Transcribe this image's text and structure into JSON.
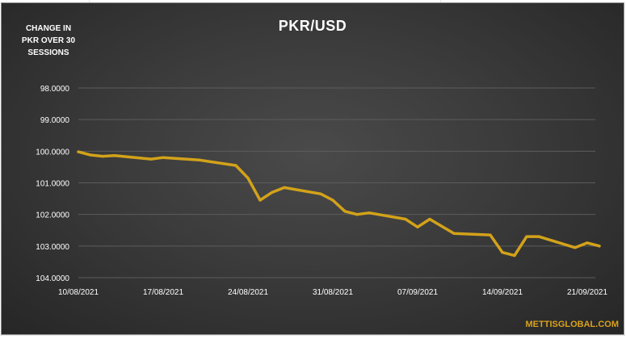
{
  "chart_data": {
    "type": "line",
    "title": "PKR/USD",
    "side_note_lines": [
      "CHANGE IN",
      "PKR OVER 30",
      "SESSIONS"
    ],
    "watermark": "METTISGLOBAL.COM",
    "xlabel": "",
    "ylabel": "",
    "ylim": [
      98,
      104
    ],
    "y_inverted": true,
    "y_ticks": [
      "98.0000",
      "99.0000",
      "100.0000",
      "101.0000",
      "102.0000",
      "103.0000",
      "104.0000"
    ],
    "x_tick_labels": [
      "10/08/2021",
      "17/08/2021",
      "24/08/2021",
      "31/08/2021",
      "07/09/2021",
      "14/09/2021",
      "21/09/2021"
    ],
    "grid": "horizontal",
    "series": [
      {
        "color": "#d3a21a",
        "points": [
          {
            "x": "10/08/2021",
            "y": 100.02
          },
          {
            "x": "11/08/2021",
            "y": 100.12
          },
          {
            "x": "12/08/2021",
            "y": 100.16
          },
          {
            "x": "13/08/2021",
            "y": 100.14
          },
          {
            "x": "16/08/2021",
            "y": 100.25
          },
          {
            "x": "17/08/2021",
            "y": 100.2
          },
          {
            "x": "20/08/2021",
            "y": 100.28
          },
          {
            "x": "23/08/2021",
            "y": 100.45
          },
          {
            "x": "24/08/2021",
            "y": 100.85
          },
          {
            "x": "25/08/2021",
            "y": 101.55
          },
          {
            "x": "26/08/2021",
            "y": 101.3
          },
          {
            "x": "27/08/2021",
            "y": 101.15
          },
          {
            "x": "30/08/2021",
            "y": 101.35
          },
          {
            "x": "31/08/2021",
            "y": 101.55
          },
          {
            "x": "01/09/2021",
            "y": 101.9
          },
          {
            "x": "02/09/2021",
            "y": 102.0
          },
          {
            "x": "03/09/2021",
            "y": 101.95
          },
          {
            "x": "06/09/2021",
            "y": 102.15
          },
          {
            "x": "07/09/2021",
            "y": 102.4
          },
          {
            "x": "08/09/2021",
            "y": 102.15
          },
          {
            "x": "10/09/2021",
            "y": 102.6
          },
          {
            "x": "13/09/2021",
            "y": 102.65
          },
          {
            "x": "14/09/2021",
            "y": 103.2
          },
          {
            "x": "15/09/2021",
            "y": 103.3
          },
          {
            "x": "16/09/2021",
            "y": 102.7
          },
          {
            "x": "17/09/2021",
            "y": 102.7
          },
          {
            "x": "20/09/2021",
            "y": 103.05
          },
          {
            "x": "21/09/2021",
            "y": 102.9
          },
          {
            "x": "22/09/2021",
            "y": 103.0
          }
        ]
      }
    ]
  }
}
